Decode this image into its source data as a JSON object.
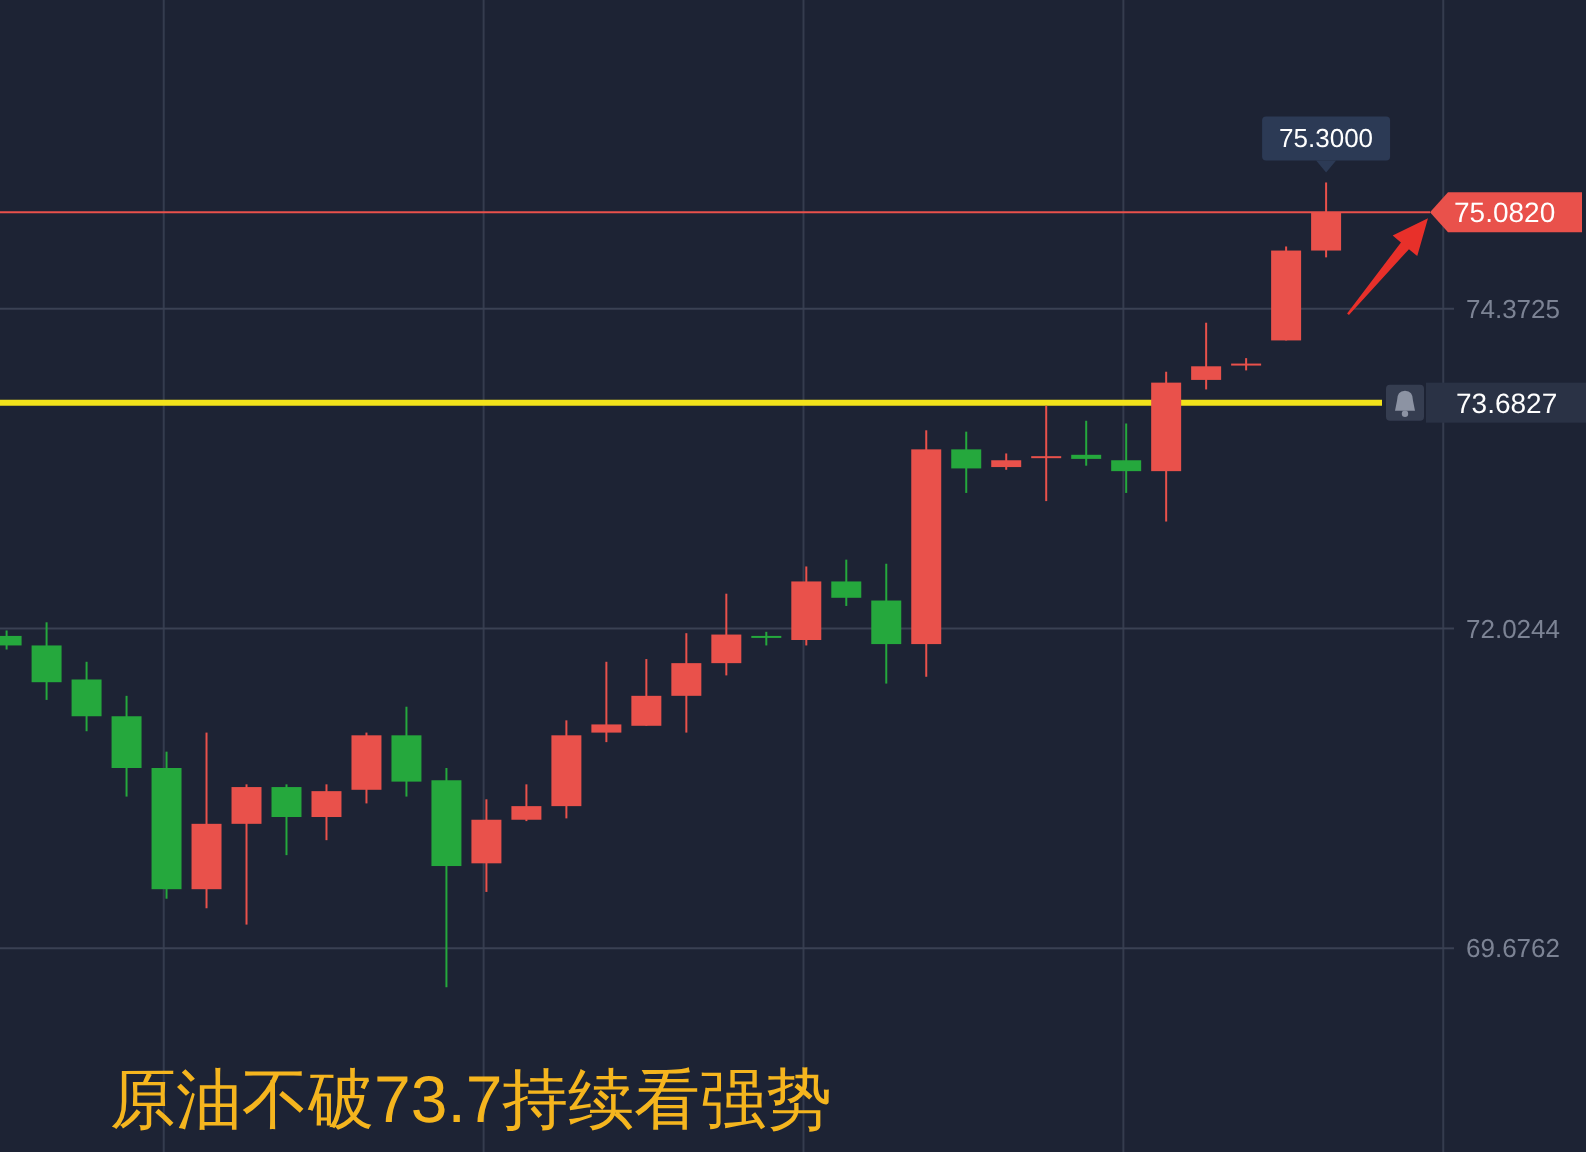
{
  "chart_data": {
    "type": "candlestick",
    "title": "原油不破73.7持续看强势",
    "categories": [
      null,
      null,
      null,
      null,
      null,
      null,
      null,
      null,
      null,
      null,
      null,
      null,
      null,
      null,
      null,
      null,
      null,
      null,
      null,
      null,
      null,
      null,
      null,
      null,
      null,
      null,
      null,
      null,
      null,
      null,
      null,
      null,
      null,
      null
    ],
    "ohlc": [
      [
        71.97,
        72.01,
        71.87,
        71.9
      ],
      [
        71.9,
        72.07,
        71.5,
        71.63
      ],
      [
        71.65,
        71.78,
        71.27,
        71.38
      ],
      [
        71.38,
        71.53,
        70.79,
        71.0
      ],
      [
        71.0,
        71.12,
        70.04,
        70.11
      ],
      [
        70.11,
        71.26,
        69.97,
        70.59
      ],
      [
        70.59,
        70.88,
        69.85,
        70.86
      ],
      [
        70.86,
        70.88,
        70.36,
        70.64
      ],
      [
        70.64,
        70.88,
        70.47,
        70.83
      ],
      [
        70.84,
        71.26,
        70.74,
        71.24
      ],
      [
        71.24,
        71.45,
        70.79,
        70.9
      ],
      [
        70.91,
        71.0,
        69.39,
        70.28
      ],
      [
        70.3,
        70.77,
        70.09,
        70.62
      ],
      [
        70.62,
        70.88,
        70.61,
        70.72
      ],
      [
        70.72,
        71.35,
        70.63,
        71.24
      ],
      [
        71.26,
        71.78,
        71.19,
        71.32
      ],
      [
        71.31,
        71.8,
        71.31,
        71.53
      ],
      [
        71.53,
        71.99,
        71.26,
        71.77
      ],
      [
        71.77,
        72.28,
        71.68,
        71.98
      ],
      [
        71.97,
        72.0,
        71.9,
        71.96
      ],
      [
        71.94,
        72.48,
        71.9,
        72.37
      ],
      [
        72.37,
        72.53,
        72.19,
        72.25
      ],
      [
        72.23,
        72.5,
        71.62,
        71.91
      ],
      [
        71.91,
        73.48,
        71.67,
        73.34
      ],
      [
        73.34,
        73.47,
        73.02,
        73.2
      ],
      [
        73.21,
        73.31,
        73.19,
        73.26
      ],
      [
        73.28,
        73.66,
        72.96,
        73.29
      ],
      [
        73.3,
        73.55,
        73.22,
        73.27
      ],
      [
        73.26,
        73.53,
        73.02,
        73.18
      ],
      [
        73.18,
        73.91,
        72.81,
        73.83
      ],
      [
        73.85,
        74.27,
        73.78,
        73.95
      ],
      [
        73.96,
        74.01,
        73.92,
        73.97
      ],
      [
        74.14,
        74.83,
        74.14,
        74.8
      ],
      [
        74.8,
        75.3,
        74.75,
        75.082
      ]
    ],
    "colors": [
      "#25a83d",
      "#25a83d",
      "#25a83d",
      "#25a83d",
      "#25a83d",
      "#e9514b",
      "#e9514b",
      "#25a83d",
      "#e9514b",
      "#e9514b",
      "#25a83d",
      "#25a83d",
      "#e9514b",
      "#e9514b",
      "#e9514b",
      "#e9514b",
      "#e9514b",
      "#e9514b",
      "#e9514b",
      "#25a83d",
      "#e9514b",
      "#25a83d",
      "#25a83d",
      "#e9514b",
      "#25a83d",
      "#e9514b",
      "#e9514b",
      "#25a83d",
      "#25a83d",
      "#e9514b",
      "#e9514b",
      "#e9514b",
      "#e9514b",
      "#e9514b"
    ],
    "ylim": [
      68.18,
      76.64
    ],
    "yticks": [
      69.6762,
      72.0244,
      74.3725
    ],
    "grid": true,
    "ref_lines": [
      {
        "axis": "y",
        "value": 75.082,
        "label": "75.0820",
        "color": "#e9514b"
      },
      {
        "axis": "y",
        "value": 73.6827,
        "label": "73.6827",
        "color": "#f2e21b"
      }
    ],
    "annotations": [
      {
        "text": "75.3000",
        "y": 75.3
      }
    ]
  }
}
